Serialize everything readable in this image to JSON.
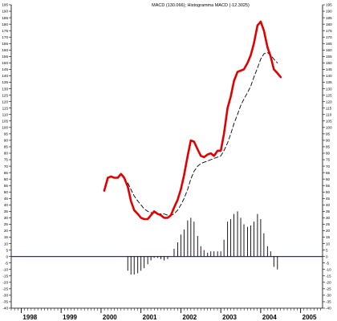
{
  "chart_data": {
    "type": "line",
    "title": "MACD (130.066); Histogramma MACD (-12.3025)",
    "xlabel": "",
    "ylabel": "",
    "ylim": [
      -40,
      195
    ],
    "xlim": [
      1997.75,
      2005.55
    ],
    "grid": false,
    "y_ticks": [
      -40,
      -35,
      -30,
      -25,
      -20,
      -15,
      -10,
      -5,
      0,
      5,
      10,
      15,
      20,
      25,
      30,
      35,
      40,
      45,
      50,
      55,
      60,
      65,
      70,
      75,
      80,
      85,
      90,
      95,
      100,
      105,
      110,
      115,
      120,
      125,
      130,
      135,
      140,
      145,
      150,
      155,
      160,
      165,
      170,
      175,
      180,
      185,
      190,
      195
    ],
    "year_labels": [
      "1998",
      "1999",
      "2000",
      "2001",
      "2002",
      "2003",
      "2004",
      "2005"
    ],
    "zero_line": 0,
    "series": [
      {
        "kind": "line",
        "color": "#e00000",
        "points": [
          [
            2000.08,
            51
          ],
          [
            2000.17,
            61
          ],
          [
            2000.25,
            62
          ],
          [
            2000.33,
            61
          ],
          [
            2000.42,
            61
          ],
          [
            2000.5,
            64
          ],
          [
            2000.58,
            61
          ],
          [
            2000.67,
            54
          ],
          [
            2000.75,
            43
          ],
          [
            2000.83,
            36
          ],
          [
            2000.92,
            33
          ],
          [
            2001.0,
            30
          ],
          [
            2001.08,
            29
          ],
          [
            2001.17,
            29
          ],
          [
            2001.25,
            32
          ],
          [
            2001.33,
            35
          ],
          [
            2001.42,
            33
          ],
          [
            2001.5,
            32
          ],
          [
            2001.58,
            30
          ],
          [
            2001.67,
            30
          ],
          [
            2001.75,
            32
          ],
          [
            2001.83,
            38
          ],
          [
            2001.92,
            44
          ],
          [
            2002.0,
            52
          ],
          [
            2002.08,
            63
          ],
          [
            2002.17,
            78
          ],
          [
            2002.25,
            90
          ],
          [
            2002.33,
            89
          ],
          [
            2002.42,
            83
          ],
          [
            2002.5,
            78
          ],
          [
            2002.58,
            77
          ],
          [
            2002.67,
            79
          ],
          [
            2002.75,
            80
          ],
          [
            2002.83,
            78
          ],
          [
            2002.92,
            82
          ],
          [
            2003.0,
            82
          ],
          [
            2003.08,
            95
          ],
          [
            2003.17,
            115
          ],
          [
            2003.25,
            124
          ],
          [
            2003.33,
            136
          ],
          [
            2003.42,
            143
          ],
          [
            2003.5,
            144
          ],
          [
            2003.58,
            145
          ],
          [
            2003.67,
            150
          ],
          [
            2003.75,
            156
          ],
          [
            2003.83,
            165
          ],
          [
            2003.92,
            179
          ],
          [
            2004.0,
            182
          ],
          [
            2004.08,
            175
          ],
          [
            2004.17,
            162
          ],
          [
            2004.25,
            155
          ],
          [
            2004.33,
            145
          ],
          [
            2004.42,
            142
          ],
          [
            2004.5,
            139
          ]
        ]
      },
      {
        "kind": "line",
        "color": "#000000",
        "dashed": true,
        "points": [
          [
            2000.67,
            57
          ],
          [
            2000.75,
            52
          ],
          [
            2000.83,
            47
          ],
          [
            2000.92,
            43
          ],
          [
            2001.0,
            40
          ],
          [
            2001.08,
            37
          ],
          [
            2001.17,
            35
          ],
          [
            2001.25,
            34
          ],
          [
            2001.33,
            34
          ],
          [
            2001.42,
            33
          ],
          [
            2001.5,
            33
          ],
          [
            2001.58,
            33
          ],
          [
            2001.67,
            32
          ],
          [
            2001.75,
            32
          ],
          [
            2001.83,
            33
          ],
          [
            2001.92,
            36
          ],
          [
            2002.0,
            40
          ],
          [
            2002.08,
            45
          ],
          [
            2002.17,
            52
          ],
          [
            2002.25,
            60
          ],
          [
            2002.33,
            66
          ],
          [
            2002.42,
            70
          ],
          [
            2002.5,
            72
          ],
          [
            2002.58,
            73
          ],
          [
            2002.67,
            74
          ],
          [
            2002.75,
            75
          ],
          [
            2002.83,
            76
          ],
          [
            2002.92,
            77
          ],
          [
            2003.0,
            78
          ],
          [
            2003.08,
            82
          ],
          [
            2003.17,
            88
          ],
          [
            2003.25,
            95
          ],
          [
            2003.33,
            103
          ],
          [
            2003.42,
            110
          ],
          [
            2003.5,
            117
          ],
          [
            2003.58,
            122
          ],
          [
            2003.67,
            127
          ],
          [
            2003.75,
            132
          ],
          [
            2003.83,
            139
          ],
          [
            2003.92,
            146
          ],
          [
            2004.0,
            153
          ],
          [
            2004.08,
            157
          ],
          [
            2004.17,
            158
          ],
          [
            2004.25,
            156
          ],
          [
            2004.33,
            153
          ],
          [
            2004.42,
            150
          ]
        ]
      },
      {
        "kind": "histogram",
        "color": "#000000",
        "bars": [
          [
            2000.67,
            -11
          ],
          [
            2000.75,
            -14
          ],
          [
            2000.83,
            -14
          ],
          [
            2000.92,
            -13
          ],
          [
            2001.0,
            -11
          ],
          [
            2001.08,
            -9
          ],
          [
            2001.17,
            -6
          ],
          [
            2001.25,
            -3
          ],
          [
            2001.33,
            -1
          ],
          [
            2001.42,
            -1
          ],
          [
            2001.5,
            -2
          ],
          [
            2001.58,
            -3
          ],
          [
            2001.67,
            -2
          ],
          [
            2001.75,
            0
          ],
          [
            2001.83,
            6
          ],
          [
            2001.92,
            11
          ],
          [
            2002.0,
            17
          ],
          [
            2002.08,
            21
          ],
          [
            2002.17,
            28
          ],
          [
            2002.25,
            30
          ],
          [
            2002.33,
            27
          ],
          [
            2002.42,
            16
          ],
          [
            2002.5,
            8
          ],
          [
            2002.58,
            5
          ],
          [
            2002.67,
            3
          ],
          [
            2002.75,
            4
          ],
          [
            2002.83,
            4
          ],
          [
            2002.92,
            4
          ],
          [
            2003.0,
            4
          ],
          [
            2003.08,
            13
          ],
          [
            2003.17,
            27
          ],
          [
            2003.25,
            29
          ],
          [
            2003.33,
            33
          ],
          [
            2003.42,
            35
          ],
          [
            2003.5,
            30
          ],
          [
            2003.58,
            25
          ],
          [
            2003.67,
            23
          ],
          [
            2003.75,
            24
          ],
          [
            2003.83,
            27
          ],
          [
            2003.92,
            33
          ],
          [
            2004.0,
            29
          ],
          [
            2004.08,
            18
          ],
          [
            2004.17,
            8
          ],
          [
            2004.25,
            4
          ],
          [
            2004.33,
            -8
          ],
          [
            2004.42,
            -10
          ]
        ]
      }
    ]
  }
}
